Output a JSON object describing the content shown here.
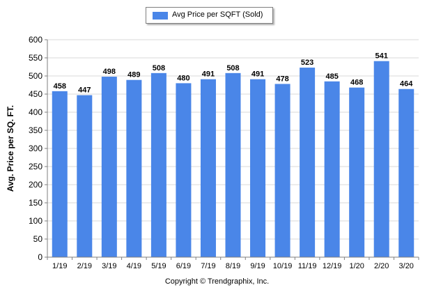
{
  "chart_data": {
    "type": "bar",
    "categories": [
      "1/19",
      "2/19",
      "3/19",
      "4/19",
      "5/19",
      "6/19",
      "7/19",
      "8/19",
      "9/19",
      "10/19",
      "11/19",
      "12/19",
      "1/20",
      "2/20",
      "3/20"
    ],
    "series": [
      {
        "name": "Avg Price per SQFT (Sold)",
        "values": [
          458,
          447,
          498,
          489,
          508,
          480,
          491,
          508,
          491,
          478,
          523,
          485,
          468,
          541,
          464
        ]
      }
    ],
    "ylabel": "Avg. Price per SQ. FT.",
    "xlabel": "",
    "ylim": [
      0,
      600
    ],
    "yticks": [
      0,
      50,
      100,
      150,
      200,
      250,
      300,
      350,
      400,
      450,
      500,
      550,
      600
    ],
    "grid": true,
    "legend": "top-center",
    "bar_color": "#4a86e8",
    "data_labels": true
  },
  "footer": {
    "copyright": "Copyright © Trendgraphix, Inc."
  }
}
